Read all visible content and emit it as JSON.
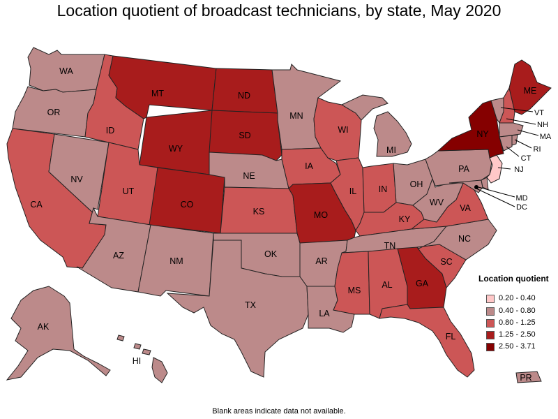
{
  "title": "Location quotient of broadcast technicians, by state, May 2020",
  "footnote": "Blank areas indicate data not available.",
  "legend": {
    "title": "Location quotient",
    "items": [
      {
        "range": "0.20 - 0.40",
        "color": "#ffc8c8"
      },
      {
        "range": "0.40 - 0.80",
        "color": "#bc8a8a"
      },
      {
        "range": "0.80 - 1.25",
        "color": "#cc5656"
      },
      {
        "range": "1.25 - 2.50",
        "color": "#a81c1c"
      },
      {
        "range": "2.50 - 3.71",
        "color": "#850000"
      }
    ]
  },
  "states": {
    "WA": {
      "label": "WA",
      "class": "0.40 - 0.80"
    },
    "OR": {
      "label": "OR",
      "class": "0.40 - 0.80"
    },
    "CA": {
      "label": "CA",
      "class": "0.80 - 1.25"
    },
    "NV": {
      "label": "NV",
      "class": "0.40 - 0.80"
    },
    "ID": {
      "label": "ID",
      "class": "0.80 - 1.25"
    },
    "MT": {
      "label": "MT",
      "class": "1.25 - 2.50"
    },
    "WY": {
      "label": "WY",
      "class": "1.25 - 2.50"
    },
    "UT": {
      "label": "UT",
      "class": "0.80 - 1.25"
    },
    "AZ": {
      "label": "AZ",
      "class": "0.40 - 0.80"
    },
    "CO": {
      "label": "CO",
      "class": "1.25 - 2.50"
    },
    "NM": {
      "label": "NM",
      "class": "0.40 - 0.80"
    },
    "ND": {
      "label": "ND",
      "class": "1.25 - 2.50"
    },
    "SD": {
      "label": "SD",
      "class": "1.25 - 2.50"
    },
    "NE": {
      "label": "NE",
      "class": "0.40 - 0.80"
    },
    "KS": {
      "label": "KS",
      "class": "0.80 - 1.25"
    },
    "OK": {
      "label": "OK",
      "class": "0.40 - 0.80"
    },
    "TX": {
      "label": "TX",
      "class": "0.40 - 0.80"
    },
    "MN": {
      "label": "MN",
      "class": "0.40 - 0.80"
    },
    "IA": {
      "label": "IA",
      "class": "0.80 - 1.25"
    },
    "MO": {
      "label": "MO",
      "class": "1.25 - 2.50"
    },
    "AR": {
      "label": "AR",
      "class": "0.40 - 0.80"
    },
    "LA": {
      "label": "LA",
      "class": "0.40 - 0.80"
    },
    "WI": {
      "label": "WI",
      "class": "0.80 - 1.25"
    },
    "IL": {
      "label": "IL",
      "class": "0.80 - 1.25"
    },
    "MI": {
      "label": "MI",
      "class": "0.40 - 0.80"
    },
    "IN": {
      "label": "IN",
      "class": "0.80 - 1.25"
    },
    "OH": {
      "label": "OH",
      "class": "0.40 - 0.80"
    },
    "KY": {
      "label": "KY",
      "class": "0.80 - 1.25"
    },
    "TN": {
      "label": "TN",
      "class": "0.40 - 0.80"
    },
    "MS": {
      "label": "MS",
      "class": "0.80 - 1.25"
    },
    "AL": {
      "label": "AL",
      "class": "0.80 - 1.25"
    },
    "GA": {
      "label": "GA",
      "class": "1.25 - 2.50"
    },
    "FL": {
      "label": "FL",
      "class": "0.80 - 1.25"
    },
    "SC": {
      "label": "SC",
      "class": "0.80 - 1.25"
    },
    "NC": {
      "label": "NC",
      "class": "0.40 - 0.80"
    },
    "VA": {
      "label": "VA",
      "class": "0.80 - 1.25"
    },
    "WV": {
      "label": "WV",
      "class": "0.40 - 0.80"
    },
    "PA": {
      "label": "PA",
      "class": "0.40 - 0.80"
    },
    "NY": {
      "label": "NY",
      "class": "2.50 - 3.71"
    },
    "ME": {
      "label": "ME",
      "class": "1.25 - 2.50"
    },
    "VT": {
      "label": "VT",
      "class": "0.40 - 0.80"
    },
    "NH": {
      "label": "NH",
      "class": "0.80 - 1.25"
    },
    "MA": {
      "label": "MA",
      "class": "0.40 - 0.80"
    },
    "RI": {
      "label": "RI",
      "class": "0.40 - 0.80"
    },
    "CT": {
      "label": "CT",
      "class": "0.40 - 0.80"
    },
    "NJ": {
      "label": "NJ",
      "class": "0.20 - 0.40"
    },
    "DE": {
      "label": "",
      "class": "0.40 - 0.80"
    },
    "MD": {
      "label": "MD",
      "class": "0.40 - 0.80"
    },
    "DC": {
      "label": "DC",
      "class": "1.25 - 2.50"
    },
    "AK": {
      "label": "AK",
      "class": "0.40 - 0.80"
    },
    "HI": {
      "label": "HI",
      "class": "0.40 - 0.80"
    },
    "PR": {
      "label": "PR",
      "class": "0.40 - 0.80"
    }
  }
}
